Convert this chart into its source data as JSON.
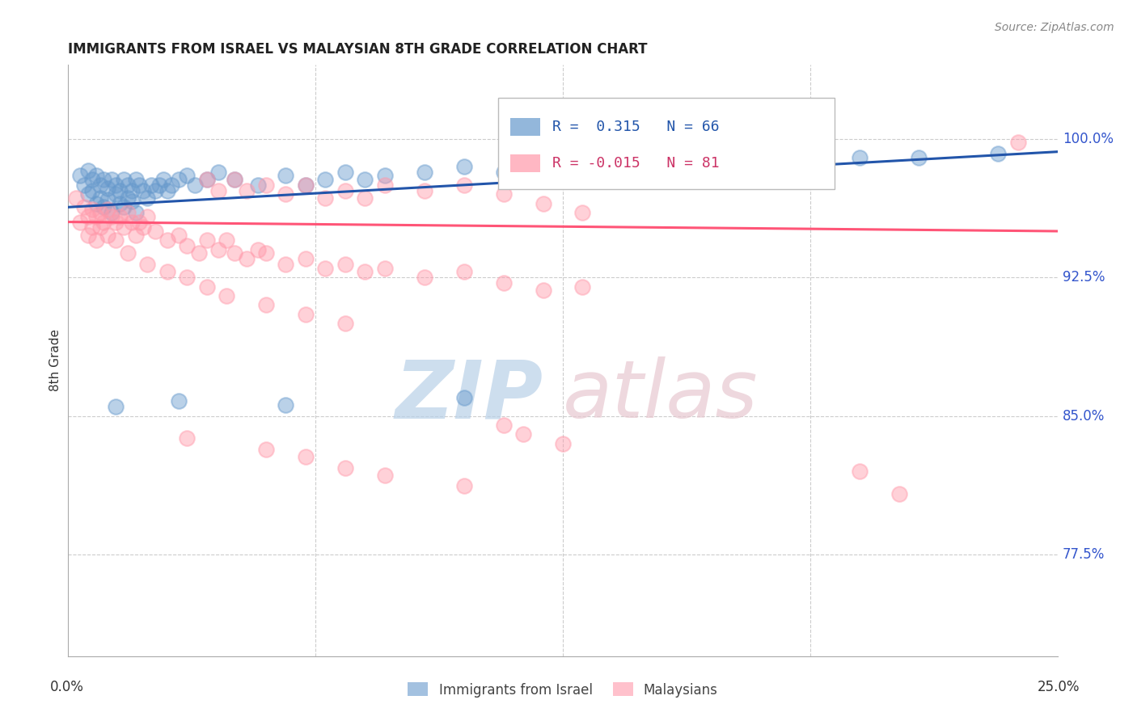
{
  "title": "IMMIGRANTS FROM ISRAEL VS MALAYSIAN 8TH GRADE CORRELATION CHART",
  "source": "Source: ZipAtlas.com",
  "ylabel": "8th Grade",
  "ytick_labels": [
    "77.5%",
    "85.0%",
    "92.5%",
    "100.0%"
  ],
  "ytick_values": [
    0.775,
    0.85,
    0.925,
    1.0
  ],
  "xmin": 0.0,
  "xmax": 0.25,
  "ymin": 0.72,
  "ymax": 1.04,
  "blue_R": 0.315,
  "blue_N": 66,
  "pink_R": -0.015,
  "pink_N": 81,
  "blue_color": "#6699CC",
  "pink_color": "#FF99AA",
  "blue_line_color": "#2255AA",
  "pink_line_color": "#FF5577",
  "legend_text_blue_color": "#2255AA",
  "legend_text_pink_color": "#CC3366",
  "right_axis_color": "#3355CC",
  "blue_points": [
    [
      0.003,
      0.98
    ],
    [
      0.004,
      0.975
    ],
    [
      0.005,
      0.983
    ],
    [
      0.005,
      0.97
    ],
    [
      0.006,
      0.978
    ],
    [
      0.006,
      0.972
    ],
    [
      0.007,
      0.98
    ],
    [
      0.007,
      0.965
    ],
    [
      0.008,
      0.975
    ],
    [
      0.008,
      0.968
    ],
    [
      0.009,
      0.978
    ],
    [
      0.009,
      0.963
    ],
    [
      0.01,
      0.973
    ],
    [
      0.01,
      0.967
    ],
    [
      0.011,
      0.978
    ],
    [
      0.011,
      0.96
    ],
    [
      0.012,
      0.975
    ],
    [
      0.012,
      0.97
    ],
    [
      0.013,
      0.972
    ],
    [
      0.013,
      0.965
    ],
    [
      0.014,
      0.978
    ],
    [
      0.014,
      0.963
    ],
    [
      0.015,
      0.975
    ],
    [
      0.015,
      0.968
    ],
    [
      0.016,
      0.972
    ],
    [
      0.016,
      0.966
    ],
    [
      0.017,
      0.978
    ],
    [
      0.017,
      0.96
    ],
    [
      0.018,
      0.975
    ],
    [
      0.019,
      0.972
    ],
    [
      0.02,
      0.968
    ],
    [
      0.021,
      0.975
    ],
    [
      0.022,
      0.972
    ],
    [
      0.023,
      0.975
    ],
    [
      0.024,
      0.978
    ],
    [
      0.025,
      0.972
    ],
    [
      0.026,
      0.975
    ],
    [
      0.028,
      0.978
    ],
    [
      0.03,
      0.98
    ],
    [
      0.032,
      0.975
    ],
    [
      0.035,
      0.978
    ],
    [
      0.038,
      0.982
    ],
    [
      0.042,
      0.978
    ],
    [
      0.048,
      0.975
    ],
    [
      0.055,
      0.98
    ],
    [
      0.06,
      0.975
    ],
    [
      0.065,
      0.978
    ],
    [
      0.07,
      0.982
    ],
    [
      0.075,
      0.978
    ],
    [
      0.08,
      0.98
    ],
    [
      0.09,
      0.982
    ],
    [
      0.1,
      0.985
    ],
    [
      0.11,
      0.982
    ],
    [
      0.12,
      0.985
    ],
    [
      0.13,
      0.988
    ],
    [
      0.14,
      0.985
    ],
    [
      0.15,
      0.988
    ],
    [
      0.165,
      0.99
    ],
    [
      0.175,
      0.985
    ],
    [
      0.2,
      0.99
    ],
    [
      0.215,
      0.99
    ],
    [
      0.235,
      0.992
    ],
    [
      0.012,
      0.855
    ],
    [
      0.028,
      0.858
    ],
    [
      0.055,
      0.856
    ],
    [
      0.1,
      0.86
    ]
  ],
  "pink_points": [
    [
      0.002,
      0.968
    ],
    [
      0.003,
      0.955
    ],
    [
      0.004,
      0.963
    ],
    [
      0.005,
      0.958
    ],
    [
      0.005,
      0.948
    ],
    [
      0.006,
      0.962
    ],
    [
      0.006,
      0.952
    ],
    [
      0.007,
      0.958
    ],
    [
      0.007,
      0.945
    ],
    [
      0.008,
      0.96
    ],
    [
      0.008,
      0.952
    ],
    [
      0.009,
      0.955
    ],
    [
      0.01,
      0.962
    ],
    [
      0.01,
      0.948
    ],
    [
      0.011,
      0.958
    ],
    [
      0.012,
      0.955
    ],
    [
      0.012,
      0.945
    ],
    [
      0.013,
      0.958
    ],
    [
      0.014,
      0.952
    ],
    [
      0.015,
      0.96
    ],
    [
      0.016,
      0.955
    ],
    [
      0.017,
      0.948
    ],
    [
      0.018,
      0.955
    ],
    [
      0.019,
      0.952
    ],
    [
      0.02,
      0.958
    ],
    [
      0.022,
      0.95
    ],
    [
      0.025,
      0.945
    ],
    [
      0.028,
      0.948
    ],
    [
      0.03,
      0.942
    ],
    [
      0.033,
      0.938
    ],
    [
      0.035,
      0.945
    ],
    [
      0.038,
      0.94
    ],
    [
      0.04,
      0.945
    ],
    [
      0.042,
      0.938
    ],
    [
      0.045,
      0.935
    ],
    [
      0.048,
      0.94
    ],
    [
      0.05,
      0.938
    ],
    [
      0.055,
      0.932
    ],
    [
      0.06,
      0.935
    ],
    [
      0.065,
      0.93
    ],
    [
      0.07,
      0.932
    ],
    [
      0.075,
      0.928
    ],
    [
      0.08,
      0.93
    ],
    [
      0.09,
      0.925
    ],
    [
      0.1,
      0.928
    ],
    [
      0.11,
      0.922
    ],
    [
      0.12,
      0.918
    ],
    [
      0.13,
      0.92
    ],
    [
      0.035,
      0.978
    ],
    [
      0.038,
      0.972
    ],
    [
      0.042,
      0.978
    ],
    [
      0.045,
      0.972
    ],
    [
      0.05,
      0.975
    ],
    [
      0.055,
      0.97
    ],
    [
      0.06,
      0.975
    ],
    [
      0.065,
      0.968
    ],
    [
      0.07,
      0.972
    ],
    [
      0.075,
      0.968
    ],
    [
      0.08,
      0.975
    ],
    [
      0.09,
      0.972
    ],
    [
      0.1,
      0.975
    ],
    [
      0.11,
      0.97
    ],
    [
      0.12,
      0.965
    ],
    [
      0.13,
      0.96
    ],
    [
      0.015,
      0.938
    ],
    [
      0.02,
      0.932
    ],
    [
      0.025,
      0.928
    ],
    [
      0.03,
      0.925
    ],
    [
      0.035,
      0.92
    ],
    [
      0.04,
      0.915
    ],
    [
      0.05,
      0.91
    ],
    [
      0.06,
      0.905
    ],
    [
      0.07,
      0.9
    ],
    [
      0.24,
      0.998
    ],
    [
      0.03,
      0.838
    ],
    [
      0.05,
      0.832
    ],
    [
      0.06,
      0.828
    ],
    [
      0.07,
      0.822
    ],
    [
      0.08,
      0.818
    ],
    [
      0.1,
      0.812
    ],
    [
      0.2,
      0.82
    ],
    [
      0.21,
      0.808
    ],
    [
      0.11,
      0.845
    ],
    [
      0.115,
      0.84
    ],
    [
      0.125,
      0.835
    ]
  ]
}
